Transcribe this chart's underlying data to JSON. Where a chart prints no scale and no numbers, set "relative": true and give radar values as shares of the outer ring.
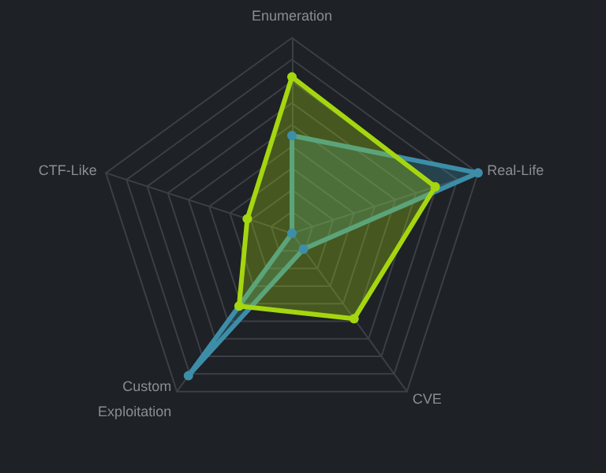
{
  "chart_data": {
    "type": "radar",
    "relative": true,
    "categories": [
      "Enumeration",
      "Real-Life",
      "CVE",
      "Custom Exploitation",
      "CTF-Like"
    ],
    "series": [
      {
        "color": "#3d8ea8",
        "values": [
          0.5,
          1.0,
          0.1,
          0.9,
          0.0
        ]
      },
      {
        "color": "#a5d610",
        "values": [
          0.8,
          0.77,
          0.54,
          0.46,
          0.24
        ]
      }
    ],
    "grid": true,
    "marker": "circle"
  }
}
